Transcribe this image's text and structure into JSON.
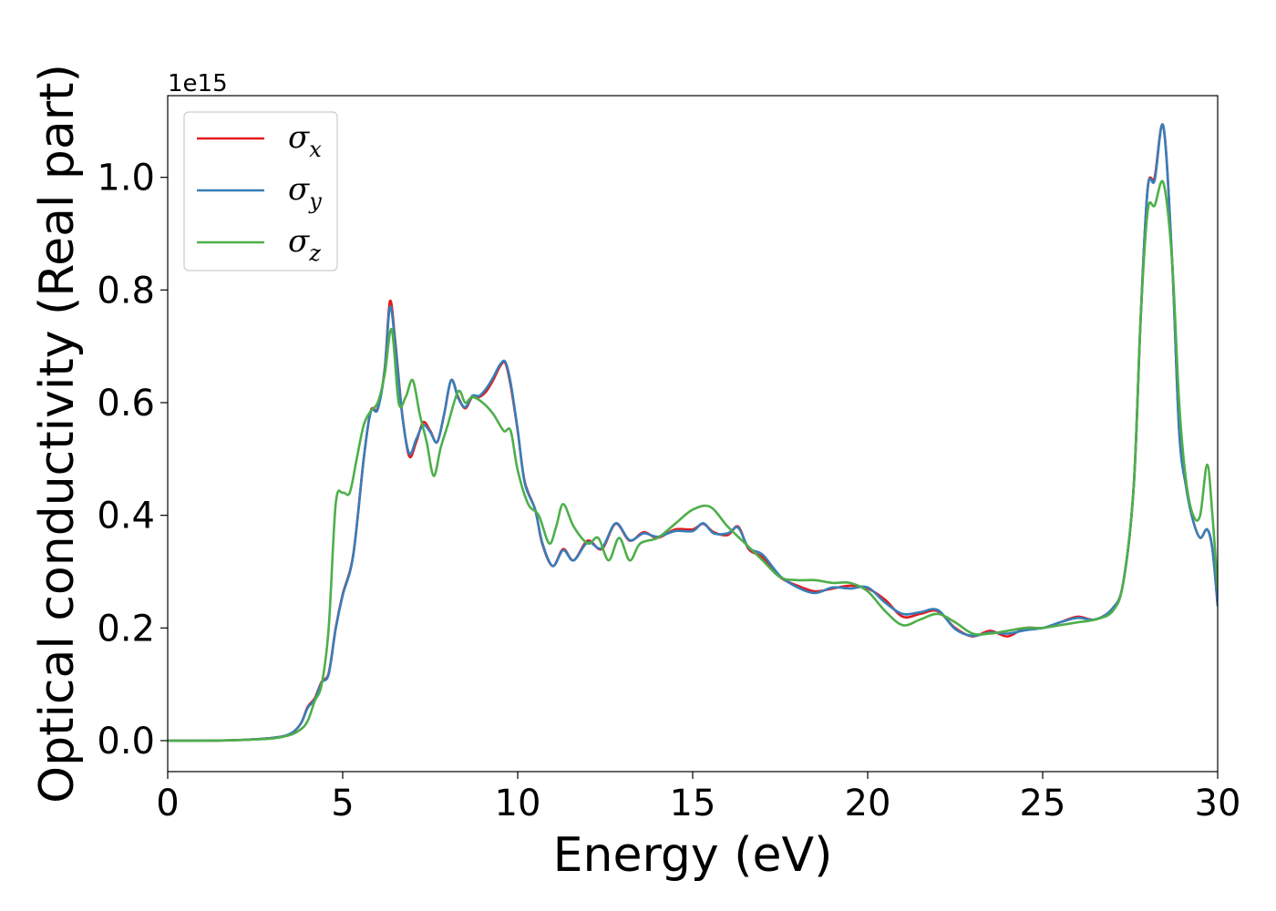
{
  "chart_data": {
    "type": "line",
    "xlabel": "Energy (eV)",
    "ylabel": "Optical conductivity (Real part)",
    "y_offset_label": "1e15",
    "xlim": [
      0,
      30
    ],
    "ylim": [
      -0.055,
      1.145
    ],
    "x_ticks": [
      0,
      5,
      10,
      15,
      20,
      25,
      30
    ],
    "x_tick_labels": [
      "0",
      "5",
      "10",
      "15",
      "20",
      "25",
      "30"
    ],
    "y_ticks": [
      0.0,
      0.2,
      0.4,
      0.6,
      0.8,
      1.0
    ],
    "y_tick_labels": [
      "0.0",
      "0.2",
      "0.4",
      "0.6",
      "0.8",
      "1.0"
    ],
    "grid": false,
    "legend_position": "top-left",
    "series": [
      {
        "name": "σx",
        "symbol": "σ",
        "subscript": "x",
        "color": "#e41a1c",
        "x": [
          0,
          1,
          2,
          3,
          3.5,
          3.8,
          4.0,
          4.2,
          4.4,
          4.6,
          4.8,
          5.0,
          5.3,
          5.6,
          5.8,
          6.0,
          6.2,
          6.35,
          6.5,
          6.7,
          6.9,
          7.1,
          7.3,
          7.5,
          7.7,
          7.9,
          8.1,
          8.3,
          8.5,
          8.7,
          8.9,
          9.1,
          9.3,
          9.5,
          9.65,
          9.8,
          10.0,
          10.2,
          10.5,
          10.7,
          11.0,
          11.3,
          11.6,
          12.0,
          12.4,
          12.8,
          13.2,
          13.6,
          14.0,
          14.5,
          15.0,
          15.3,
          15.6,
          16.0,
          16.3,
          16.6,
          17.0,
          17.5,
          18.0,
          18.5,
          19.0,
          19.5,
          20.0,
          20.5,
          21.0,
          21.5,
          22.0,
          22.5,
          23.0,
          23.5,
          24.0,
          24.5,
          25.0,
          25.5,
          26.0,
          26.5,
          27.0,
          27.3,
          27.6,
          27.8,
          28.0,
          28.2,
          28.45,
          28.7,
          28.9,
          29.1,
          29.3,
          29.5,
          29.7,
          29.85,
          30.0
        ],
        "y": [
          0.0,
          0.0,
          0.001,
          0.005,
          0.012,
          0.03,
          0.06,
          0.075,
          0.105,
          0.12,
          0.2,
          0.26,
          0.33,
          0.5,
          0.585,
          0.59,
          0.66,
          0.78,
          0.71,
          0.58,
          0.505,
          0.53,
          0.565,
          0.55,
          0.53,
          0.58,
          0.64,
          0.61,
          0.59,
          0.61,
          0.61,
          0.62,
          0.64,
          0.665,
          0.67,
          0.63,
          0.55,
          0.46,
          0.41,
          0.35,
          0.31,
          0.34,
          0.32,
          0.355,
          0.34,
          0.385,
          0.355,
          0.37,
          0.36,
          0.375,
          0.375,
          0.385,
          0.37,
          0.365,
          0.38,
          0.34,
          0.325,
          0.29,
          0.275,
          0.265,
          0.27,
          0.275,
          0.27,
          0.25,
          0.22,
          0.225,
          0.23,
          0.2,
          0.185,
          0.195,
          0.185,
          0.2,
          0.2,
          0.21,
          0.22,
          0.215,
          0.235,
          0.28,
          0.45,
          0.75,
          0.98,
          1.0,
          1.09,
          0.85,
          0.55,
          0.45,
          0.39,
          0.36,
          0.375,
          0.34,
          0.24
        ]
      },
      {
        "name": "σy",
        "symbol": "σ",
        "subscript": "y",
        "color": "#377eb8",
        "x": [
          0,
          1,
          2,
          3,
          3.5,
          3.8,
          4.0,
          4.2,
          4.4,
          4.6,
          4.8,
          5.0,
          5.3,
          5.6,
          5.8,
          6.0,
          6.2,
          6.35,
          6.5,
          6.7,
          6.9,
          7.1,
          7.3,
          7.5,
          7.7,
          7.9,
          8.1,
          8.3,
          8.5,
          8.7,
          8.9,
          9.1,
          9.3,
          9.5,
          9.65,
          9.8,
          10.0,
          10.2,
          10.5,
          10.7,
          11.0,
          11.3,
          11.6,
          12.0,
          12.4,
          12.8,
          13.2,
          13.6,
          14.0,
          14.5,
          15.0,
          15.3,
          15.6,
          16.0,
          16.3,
          16.6,
          17.0,
          17.5,
          18.0,
          18.5,
          19.0,
          19.5,
          20.0,
          20.5,
          21.0,
          21.5,
          22.0,
          22.5,
          23.0,
          23.5,
          24.0,
          24.5,
          25.0,
          25.5,
          26.0,
          26.5,
          27.0,
          27.3,
          27.6,
          27.8,
          28.0,
          28.2,
          28.45,
          28.7,
          28.9,
          29.1,
          29.3,
          29.5,
          29.7,
          29.85,
          30.0
        ],
        "y": [
          0.0,
          0.0,
          0.001,
          0.005,
          0.012,
          0.03,
          0.058,
          0.073,
          0.103,
          0.118,
          0.198,
          0.258,
          0.328,
          0.5,
          0.583,
          0.588,
          0.658,
          0.77,
          0.705,
          0.578,
          0.51,
          0.535,
          0.56,
          0.548,
          0.53,
          0.58,
          0.64,
          0.608,
          0.592,
          0.612,
          0.612,
          0.625,
          0.645,
          0.668,
          0.672,
          0.635,
          0.552,
          0.458,
          0.41,
          0.352,
          0.31,
          0.338,
          0.32,
          0.352,
          0.342,
          0.386,
          0.356,
          0.368,
          0.362,
          0.372,
          0.372,
          0.386,
          0.368,
          0.368,
          0.378,
          0.342,
          0.33,
          0.292,
          0.272,
          0.262,
          0.272,
          0.27,
          0.272,
          0.245,
          0.225,
          0.228,
          0.232,
          0.198,
          0.186,
          0.192,
          0.19,
          0.196,
          0.2,
          0.21,
          0.218,
          0.215,
          0.235,
          0.28,
          0.45,
          0.75,
          0.98,
          0.995,
          1.09,
          0.85,
          0.55,
          0.45,
          0.39,
          0.36,
          0.375,
          0.34,
          0.24
        ]
      },
      {
        "name": "σz",
        "symbol": "σ",
        "subscript": "z",
        "color": "#4daf4a",
        "x": [
          0,
          1,
          2,
          3,
          3.5,
          3.8,
          4.0,
          4.2,
          4.4,
          4.6,
          4.8,
          5.0,
          5.2,
          5.4,
          5.6,
          5.8,
          6.0,
          6.2,
          6.4,
          6.6,
          6.8,
          7.0,
          7.2,
          7.4,
          7.6,
          7.8,
          8.0,
          8.3,
          8.5,
          8.7,
          9.0,
          9.3,
          9.6,
          9.8,
          10.0,
          10.3,
          10.6,
          10.9,
          11.1,
          11.3,
          11.6,
          12.0,
          12.3,
          12.6,
          12.9,
          13.2,
          13.5,
          14.0,
          14.5,
          15.0,
          15.5,
          16.0,
          16.5,
          17.0,
          17.5,
          18.0,
          18.5,
          19.0,
          19.5,
          20.0,
          20.5,
          21.0,
          21.5,
          22.0,
          22.5,
          23.0,
          23.5,
          24.0,
          24.5,
          25.0,
          25.5,
          26.0,
          26.5,
          27.0,
          27.3,
          27.6,
          27.8,
          28.0,
          28.2,
          28.45,
          28.7,
          28.9,
          29.1,
          29.3,
          29.5,
          29.7,
          29.85,
          30.0
        ],
        "y": [
          0.0,
          0.0,
          0.001,
          0.004,
          0.01,
          0.02,
          0.035,
          0.07,
          0.1,
          0.2,
          0.42,
          0.44,
          0.44,
          0.5,
          0.56,
          0.585,
          0.6,
          0.65,
          0.73,
          0.6,
          0.61,
          0.64,
          0.58,
          0.53,
          0.47,
          0.52,
          0.56,
          0.62,
          0.6,
          0.61,
          0.6,
          0.58,
          0.55,
          0.55,
          0.48,
          0.42,
          0.4,
          0.35,
          0.38,
          0.42,
          0.38,
          0.35,
          0.36,
          0.32,
          0.36,
          0.32,
          0.35,
          0.36,
          0.385,
          0.41,
          0.415,
          0.38,
          0.35,
          0.32,
          0.29,
          0.285,
          0.285,
          0.28,
          0.28,
          0.265,
          0.23,
          0.205,
          0.215,
          0.225,
          0.21,
          0.19,
          0.19,
          0.195,
          0.2,
          0.2,
          0.205,
          0.21,
          0.215,
          0.23,
          0.28,
          0.45,
          0.75,
          0.94,
          0.95,
          0.99,
          0.85,
          0.6,
          0.46,
          0.4,
          0.4,
          0.49,
          0.4,
          0.27
        ]
      }
    ]
  }
}
